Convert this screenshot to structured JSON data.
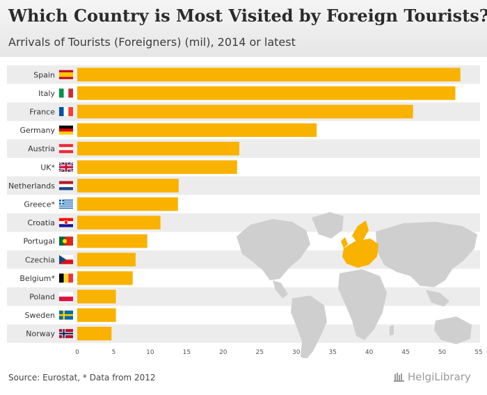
{
  "header": {
    "title": "Which Country is Most Visited by Foreign Tourists?",
    "subtitle": "Arrivals of Tourists (Foreigners) (mil), 2014 or latest"
  },
  "footer": {
    "source": "Source: Eurostat, * Data from 2012",
    "brand": "HelgiLibrary"
  },
  "colors": {
    "bar": "#f9b200",
    "map_land": "#cfcfcf",
    "map_highlight": "#f9b200",
    "row_band": "#ececec"
  },
  "chart_data": {
    "type": "bar",
    "orientation": "horizontal",
    "categories": [
      "Spain",
      "Italy",
      "France",
      "Germany",
      "Austria",
      "UK*",
      "Netherlands",
      "Greece*",
      "Croatia",
      "Portugal",
      "Czechia",
      "Belgium*",
      "Poland",
      "Sweden",
      "Norway"
    ],
    "flag_icons": [
      "spain-flag-icon",
      "italy-flag-icon",
      "france-flag-icon",
      "germany-flag-icon",
      "austria-flag-icon",
      "uk-flag-icon",
      "netherlands-flag-icon",
      "greece-flag-icon",
      "croatia-flag-icon",
      "portugal-flag-icon",
      "czechia-flag-icon",
      "belgium-flag-icon",
      "poland-flag-icon",
      "sweden-flag-icon",
      "norway-flag-icon"
    ],
    "values": [
      52.5,
      51.8,
      46.0,
      32.8,
      22.2,
      21.9,
      13.9,
      13.8,
      11.4,
      9.6,
      8.0,
      7.6,
      5.3,
      5.3,
      4.7
    ],
    "xlim": [
      0,
      55
    ],
    "xticks": [
      "0",
      "5",
      "10",
      "15",
      "20",
      "25",
      "30",
      "35",
      "40",
      "45",
      "50",
      "55"
    ],
    "grid": false,
    "legend": "none",
    "background_image": "world-map"
  }
}
